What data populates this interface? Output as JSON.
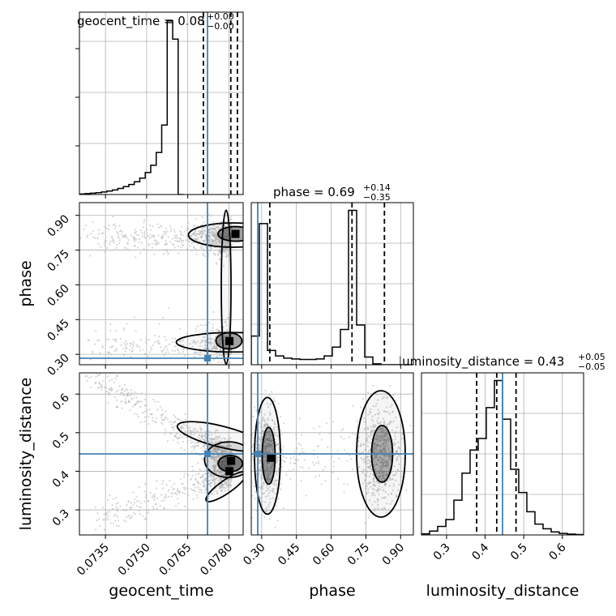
{
  "colors": {
    "truth": "#4682b4",
    "hist": "#000000",
    "grid": "#b0b0b0",
    "points": "#b5b5b5"
  },
  "titles": {
    "geocent_time": {
      "prefix": "geocent_time = 0.08",
      "sup": "+0.00",
      "sub": "−0.00"
    },
    "phase": {
      "prefix": "phase = 0.69",
      "sup": "+0.14",
      "sub": "−0.35"
    },
    "luminosity_distance": {
      "prefix": "luminosity_distance = 0.43",
      "sup": "+0.05",
      "sub": "−0.05"
    }
  },
  "axis_labels": {
    "geocent_time": "geocent_time",
    "phase": "phase",
    "luminosity_distance": "luminosity_distance"
  },
  "chart_data": {
    "type": "corner",
    "parameters": [
      "geocent_time",
      "phase",
      "luminosity_distance"
    ],
    "truths": {
      "geocent_time": 0.07722,
      "phase": 0.283,
      "luminosity_distance": 0.445
    },
    "ranges": {
      "geocent_time": [
        0.07255,
        0.07852
      ],
      "phase": [
        0.255,
        0.955
      ],
      "luminosity_distance": [
        0.235,
        0.655
      ]
    },
    "ticks": {
      "geocent_time": [
        "0.0735",
        "0.0750",
        "0.0765",
        "0.0780"
      ],
      "phase": [
        "0.30",
        "0.45",
        "0.60",
        "0.75",
        "0.90"
      ],
      "luminosity_distance_x": [
        "0.3",
        "0.4",
        "0.5",
        "0.6"
      ],
      "luminosity_distance_y": [
        "0.3",
        "0.4",
        "0.5",
        "0.6"
      ]
    },
    "marginals": {
      "geocent_time": {
        "edges_start": 0.07255,
        "bin_width": 0.0002,
        "counts": [
          0.3,
          0.5,
          0.7,
          1,
          1.4,
          1.9,
          2.5,
          3.3,
          4.3,
          5.5,
          7,
          9,
          12,
          16,
          23,
          38,
          95,
          85,
          0
        ],
        "quantiles": [
          0.07707,
          0.07807,
          0.07831
        ]
      },
      "phase": {
        "edges_start": 0.255,
        "bin_width": 0.035,
        "counts": [
          13,
          64,
          6.5,
          4,
          3,
          2.6,
          2.4,
          2.4,
          2.6,
          4,
          8,
          16,
          70,
          18,
          3.5,
          0.4,
          0,
          0,
          0,
          0
        ],
        "quantiles": [
          0.335,
          0.69,
          0.83
        ]
      },
      "luminosity_distance": {
        "edges_start": 0.235,
        "bin_width": 0.021,
        "counts": [
          0.3,
          1,
          2.2,
          4,
          9,
          16,
          22,
          25,
          33,
          40,
          30,
          17,
          11,
          6,
          2.8,
          1.6,
          0.8,
          0.4,
          0.2,
          0.1
        ],
        "quantiles": [
          0.378,
          0.43,
          0.48
        ]
      }
    },
    "grid": true
  }
}
